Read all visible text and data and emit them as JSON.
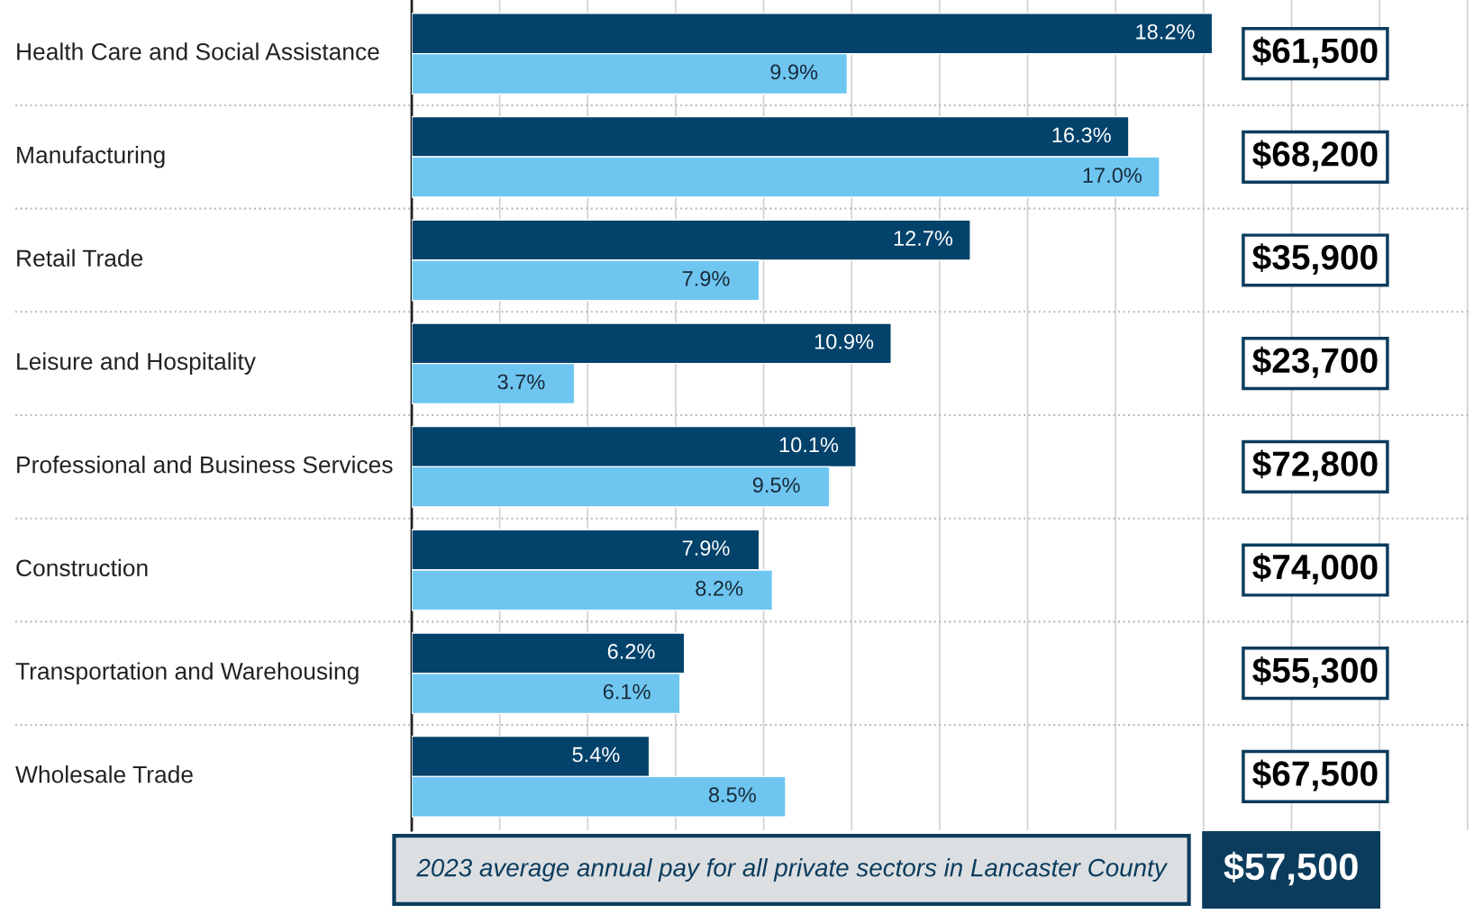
{
  "chart_data": {
    "type": "bar",
    "orientation": "horizontal",
    "categories": [
      "Health Care and Social Assistance",
      "Manufacturing",
      "Retail Trade",
      "Leisure and Hospitality",
      "Professional and Business Services",
      "Construction",
      "Transportation and Warehousing",
      "Wholesale Trade"
    ],
    "series": [
      {
        "color": "#02426b",
        "values": [
          18.2,
          16.3,
          12.7,
          10.9,
          10.1,
          7.9,
          6.2,
          5.4
        ],
        "value_labels": [
          "18.2%",
          "16.3%",
          "12.7%",
          "10.9%",
          "10.1%",
          "7.9%",
          "6.2%",
          "5.4%"
        ]
      },
      {
        "color": "#6ec6f0",
        "values": [
          9.9,
          17.0,
          7.9,
          3.7,
          9.5,
          8.2,
          6.1,
          8.5
        ],
        "value_labels": [
          "9.9%",
          "17.0%",
          "7.9%",
          "3.7%",
          "9.5%",
          "8.2%",
          "6.1%",
          "8.5%"
        ]
      }
    ],
    "grid": "x",
    "annotations": [
      "$61,500",
      "$68,200",
      "$35,900",
      "$23,700",
      "$72,800",
      "$74,000",
      "$55,300",
      "$67,500",
      "2023 average annual pay for all private sectors in Lancaster County",
      "$57,500"
    ]
  }
}
